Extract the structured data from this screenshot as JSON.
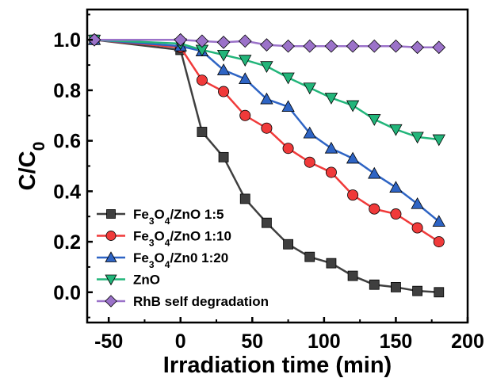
{
  "chart_data": {
    "type": "line",
    "xlabel": "Irradiation time (min)",
    "ylabel": {
      "main": "C/C",
      "sub": "0"
    },
    "xlim": [
      -65,
      200
    ],
    "ylim": [
      -0.12,
      1.12
    ],
    "xticks": [
      -50,
      0,
      50,
      100,
      150,
      200
    ],
    "yticks": [
      0.0,
      0.2,
      0.4,
      0.6,
      0.8,
      1.0
    ],
    "xtick_labels": [
      "-50",
      "0",
      "50",
      "100",
      "150",
      "200"
    ],
    "ytick_labels": [
      "0.0",
      "0.2",
      "0.4",
      "0.6",
      "0.8",
      "1.0"
    ],
    "grid": false,
    "legend_position": "bottom-left",
    "x": [
      -60,
      0,
      15,
      30,
      45,
      60,
      75,
      90,
      105,
      120,
      135,
      150,
      165,
      180
    ],
    "series": [
      {
        "name": "Fe3O4/ZnO 1:5",
        "label_parts": [
          "Fe",
          "3",
          "O",
          "4",
          "/ZnO 1:5"
        ],
        "color": "#3f3f3f",
        "marker": "square",
        "values": [
          1.0,
          0.96,
          0.635,
          0.535,
          0.37,
          0.275,
          0.19,
          0.14,
          0.115,
          0.065,
          0.03,
          0.02,
          0.005,
          0.0
        ]
      },
      {
        "name": "Fe3O4/ZnO 1:10",
        "label_parts": [
          "Fe",
          "3",
          "O",
          "4",
          "/ZnO 1:10"
        ],
        "color": "#f03a3a",
        "marker": "circle",
        "values": [
          1.0,
          0.97,
          0.84,
          0.795,
          0.7,
          0.65,
          0.57,
          0.515,
          0.475,
          0.385,
          0.33,
          0.31,
          0.255,
          0.2
        ]
      },
      {
        "name": "Fe3O4/Zn0 1:20",
        "label_parts": [
          "Fe",
          "3",
          "O",
          "4",
          "/Zn0 1:20"
        ],
        "color": "#2e64c4",
        "marker": "triangle-up",
        "values": [
          1.0,
          0.975,
          0.955,
          0.88,
          0.845,
          0.765,
          0.735,
          0.63,
          0.57,
          0.53,
          0.47,
          0.415,
          0.35,
          0.28
        ]
      },
      {
        "name": "ZnO",
        "label_parts": [
          "ZnO"
        ],
        "color": "#22b57a",
        "marker": "triangle-down",
        "values": [
          1.0,
          0.985,
          0.96,
          0.94,
          0.92,
          0.895,
          0.85,
          0.81,
          0.77,
          0.74,
          0.685,
          0.645,
          0.615,
          0.605
        ]
      },
      {
        "name": "RhB self degradation",
        "label_parts": [
          "RhB self degradation"
        ],
        "color": "#9b72c9",
        "marker": "diamond",
        "values": [
          1.0,
          1.0,
          0.995,
          0.99,
          0.995,
          0.98,
          0.975,
          0.975,
          0.975,
          0.975,
          0.975,
          0.975,
          0.97,
          0.97
        ]
      }
    ]
  }
}
